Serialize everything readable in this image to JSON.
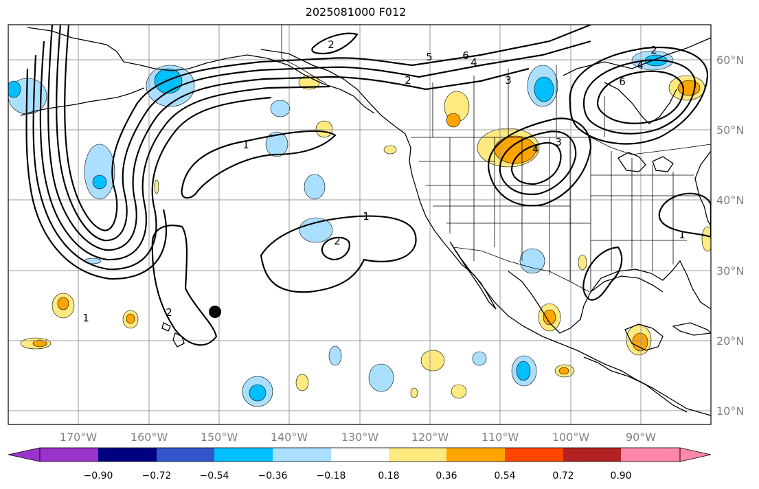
{
  "title": "2025081000 F012",
  "lat_labels": [
    "60°N",
    "50°N",
    "40°N",
    "30°N",
    "20°N",
    "10°N"
  ],
  "lon_labels": [
    "170°W",
    "160°W",
    "150°W",
    "140°W",
    "130°W",
    "120°W",
    "110°W",
    "100°W",
    "90°W"
  ],
  "colorbar": {
    "ticks": [
      "−0.90",
      "−0.72",
      "−0.54",
      "−0.36",
      "−0.18",
      "0.18",
      "0.36",
      "0.54",
      "0.72",
      "0.90"
    ],
    "colors": [
      "#9933cc",
      "#000080",
      "#3355cc",
      "#00bfff",
      "#aadfff",
      "#ffffff",
      "#ffea80",
      "#ffa500",
      "#ff4500",
      "#b22222",
      "#ff88aa",
      "#ff88aa"
    ]
  },
  "fill_colors": {
    "light_blue": "#aadfff",
    "blue": "#00bfff",
    "light_yellow": "#ffea80",
    "orange": "#ffa500"
  },
  "contour_labels": [
    "1",
    "1",
    "1",
    "2",
    "2",
    "2",
    "2",
    "3",
    "3",
    "4",
    "4",
    "6",
    "5",
    "6",
    "2",
    "4",
    "1"
  ],
  "marker": "storm-center-dot"
}
